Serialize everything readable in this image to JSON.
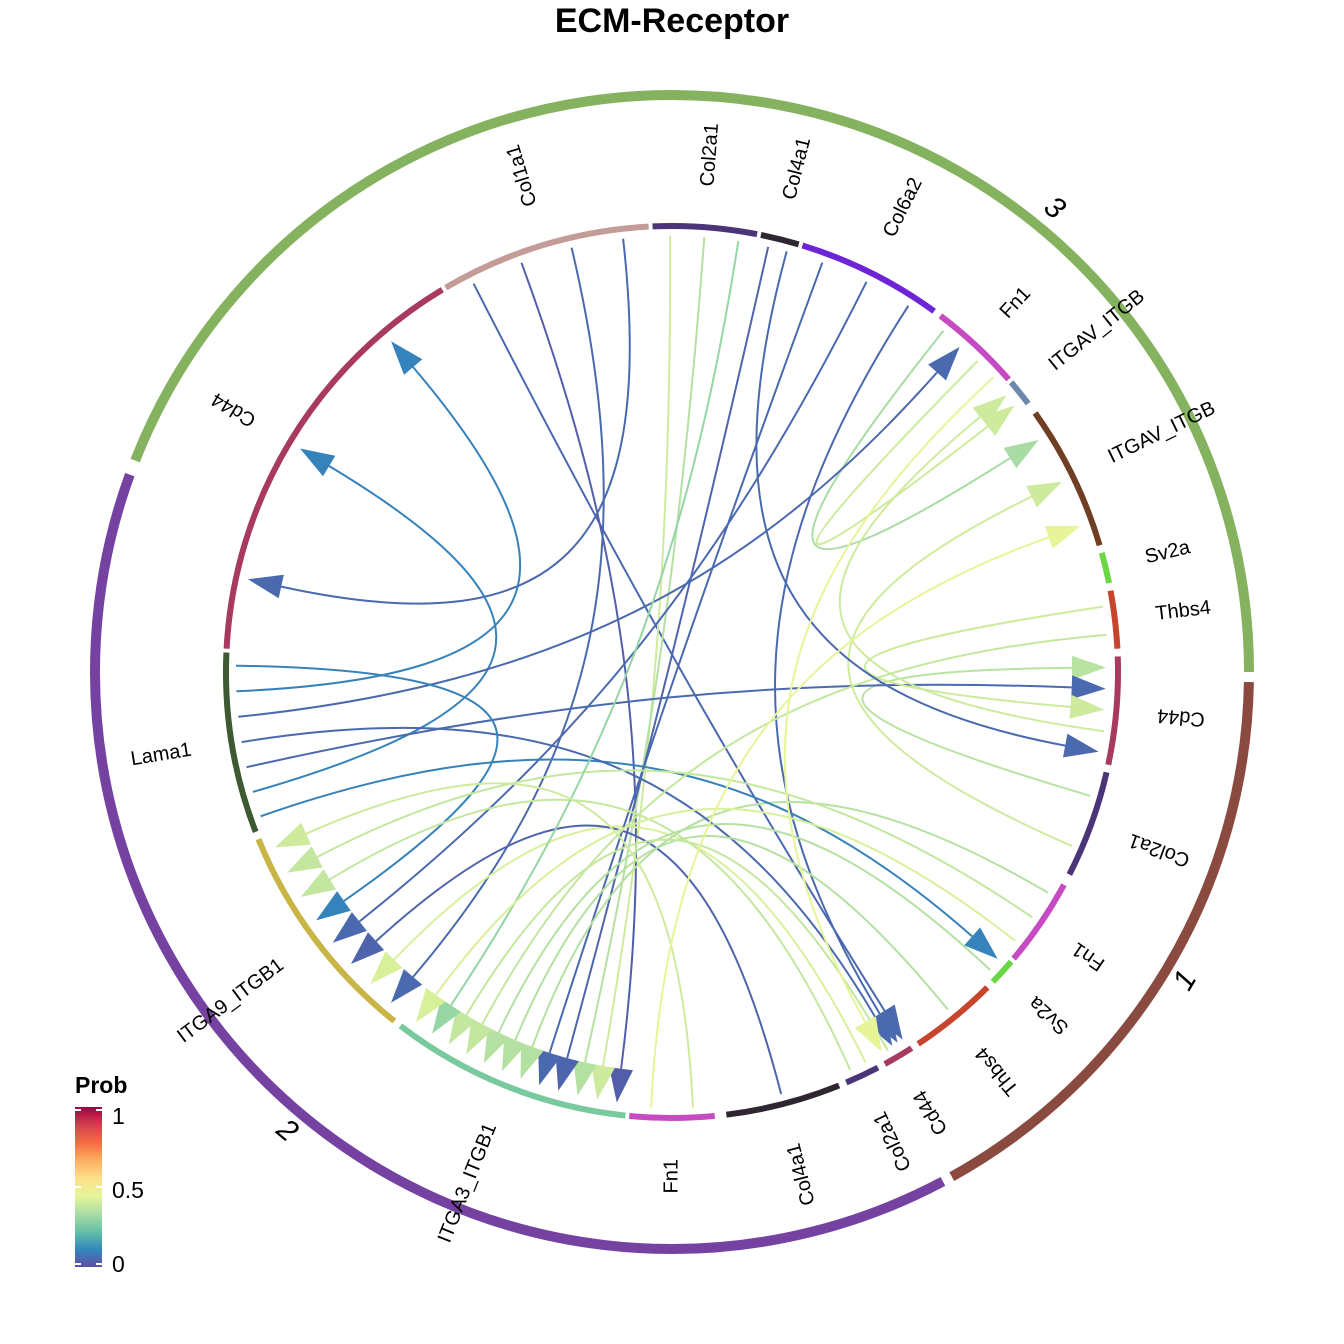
{
  "chart_data": {
    "type": "chord",
    "title": "ECM-Receptor",
    "groups": [
      {
        "name": "3",
        "color": "#84B25E"
      },
      {
        "name": "1",
        "color": "#8B4A3F"
      },
      {
        "name": "2",
        "color": "#7642A1"
      }
    ],
    "sectors": [
      {
        "label": "Col1a1",
        "group": "3",
        "color": "#C39C98"
      },
      {
        "label": "Col2a1",
        "group": "3",
        "color": "#4A3578"
      },
      {
        "label": "Col4a1",
        "group": "3",
        "color": "#2E2630"
      },
      {
        "label": "Col6a2",
        "group": "3",
        "color": "#6D24D6"
      },
      {
        "label": "Fn1",
        "group": "3",
        "color": "#C64BC2"
      },
      {
        "label": "ITGAV_ITGB",
        "group": "3",
        "color": "#6E88AC"
      },
      {
        "label": "ITGAV_ITGB",
        "group": "3",
        "color": "#6F3E24"
      },
      {
        "label": "Sv2a",
        "group": "3",
        "color": "#6BD746"
      },
      {
        "label": "Thbs4",
        "group": "1",
        "color": "#C7442D"
      },
      {
        "label": "Cd44",
        "group": "1",
        "color": "#A8395F"
      },
      {
        "label": "Col2a1",
        "group": "1",
        "color": "#4A3578"
      },
      {
        "label": "Fn1",
        "group": "1",
        "color": "#C64BC2"
      },
      {
        "label": "Sv2a",
        "group": "1",
        "color": "#6BD746"
      },
      {
        "label": "Thbs4",
        "group": "1",
        "color": "#C7442D"
      },
      {
        "label": "Cd44",
        "group": "1",
        "color": "#A8395F"
      },
      {
        "label": "Col2a1",
        "group": "1",
        "color": "#4A3578"
      },
      {
        "label": "Col4a1",
        "group": "2",
        "color": "#2E2630"
      },
      {
        "label": "Fn1",
        "group": "2",
        "color": "#C64BC2"
      },
      {
        "label": "ITGA3_ITGB1",
        "group": "2",
        "color": "#79C99E"
      },
      {
        "label": "ITGA9_ITGB1",
        "group": "2",
        "color": "#C8B546"
      },
      {
        "label": "Lama1",
        "group": "2",
        "color": "#3D5A32"
      },
      {
        "label": "Cd44",
        "group": "2",
        "color": "#A8395F"
      }
    ],
    "links": [
      {
        "from": "Col1a1",
        "to": "Cd44",
        "prob": 0.05
      },
      {
        "from": "Col1a1",
        "to": "ITGA3_ITGB1",
        "prob": 0.03
      },
      {
        "from": "Col1a1",
        "to": "ITGA9_ITGB1",
        "prob": 0.05
      },
      {
        "from": "Col1a1",
        "to": "Cd44",
        "prob": 0.05
      },
      {
        "from": "Col2a1",
        "to": "ITGA3_ITGB1",
        "prob": 0.4
      },
      {
        "from": "Col2a1",
        "to": "Cd44",
        "prob": 0.36
      },
      {
        "from": "Col2a1",
        "to": "ITGA9_ITGB1",
        "prob": 0.42
      },
      {
        "from": "Col2a1",
        "to": "ITGA3_ITGB1",
        "prob": 0.35
      },
      {
        "from": "Col4a1",
        "to": "ITGA3_ITGB1",
        "prob": 0.04
      },
      {
        "from": "Col4a1",
        "to": "ITGA9_ITGB1",
        "prob": 0.04
      },
      {
        "from": "Col6a2",
        "to": "ITGA3_ITGB1",
        "prob": 0.05
      },
      {
        "from": "Col6a2",
        "to": "ITGA9_ITGB1",
        "prob": 0.05
      },
      {
        "from": "Col6a2",
        "to": "Cd44",
        "prob": 0.05
      },
      {
        "from": "Fn1",
        "to": "ITGAV_ITGB",
        "prob": 0.33
      },
      {
        "from": "Fn1",
        "to": "ITGA3_ITGB1",
        "prob": 0.35
      },
      {
        "from": "Lama1",
        "to": "Sv2a",
        "prob": 0.1
      },
      {
        "from": "Lama1",
        "to": "Cd44",
        "prob": 0.1
      },
      {
        "from": "Lama1",
        "to": "Cd44",
        "prob": 0.05
      },
      {
        "from": "Lama1",
        "to": "Cd44",
        "prob": 0.05
      },
      {
        "from": "Lama1",
        "to": "Fn1",
        "prob": 0.05
      },
      {
        "from": "Lama1",
        "to": "Cd44",
        "prob": 0.1
      },
      {
        "from": "Lama1",
        "to": "ITGA9_ITGB1",
        "prob": 0.1
      },
      {
        "from": "Thbs4",
        "to": "Cd44",
        "prob": 0.4
      },
      {
        "from": "Thbs4",
        "to": "ITGA3_ITGB1",
        "prob": 0.35
      },
      {
        "from": "Cd44",
        "to": "ITGAV_ITGB",
        "prob": 0.4
      },
      {
        "from": "Col2a1",
        "to": "ITGAV_ITGB",
        "prob": 0.4
      },
      {
        "from": "Col2a1",
        "to": "ITGA9_ITGB1",
        "prob": 0.38
      },
      {
        "from": "Fn1",
        "to": "ITGAV_ITGB",
        "prob": 0.4
      },
      {
        "from": "Fn1",
        "to": "ITGA9_ITGB1",
        "prob": 0.38
      },
      {
        "from": "Sv2a",
        "to": "ITGA3_ITGB1",
        "prob": 0.35
      },
      {
        "from": "Thbs4",
        "to": "ITGA3_ITGB1",
        "prob": 0.38
      },
      {
        "from": "Cd44",
        "to": "ITGA3_ITGB1",
        "prob": 0.38
      },
      {
        "from": "Col2a1",
        "to": "ITGA3_ITGB1",
        "prob": 0.3
      },
      {
        "from": "Col4a1",
        "to": "Cd44",
        "prob": 0.05
      },
      {
        "from": "Fn1",
        "to": "ITGA9_ITGB1",
        "prob": 0.4
      },
      {
        "from": "Fn1",
        "to": "Cd44",
        "prob": 0.45
      },
      {
        "from": "Fn1",
        "to": "ITGA3_ITGB1",
        "prob": 0.42
      },
      {
        "from": "Fn1",
        "to": "ITGAV_ITGB",
        "prob": 0.45
      }
    ],
    "legend": {
      "title": "Prob",
      "ticks": [
        "1",
        "0.5",
        "0"
      ],
      "colors": [
        "#9E0142",
        "#D53E4F",
        "#F46D43",
        "#FDAE61",
        "#FEE08B",
        "#E6F598",
        "#ABDDA4",
        "#66C2A5",
        "#3288BD",
        "#5E4FA2"
      ]
    }
  }
}
